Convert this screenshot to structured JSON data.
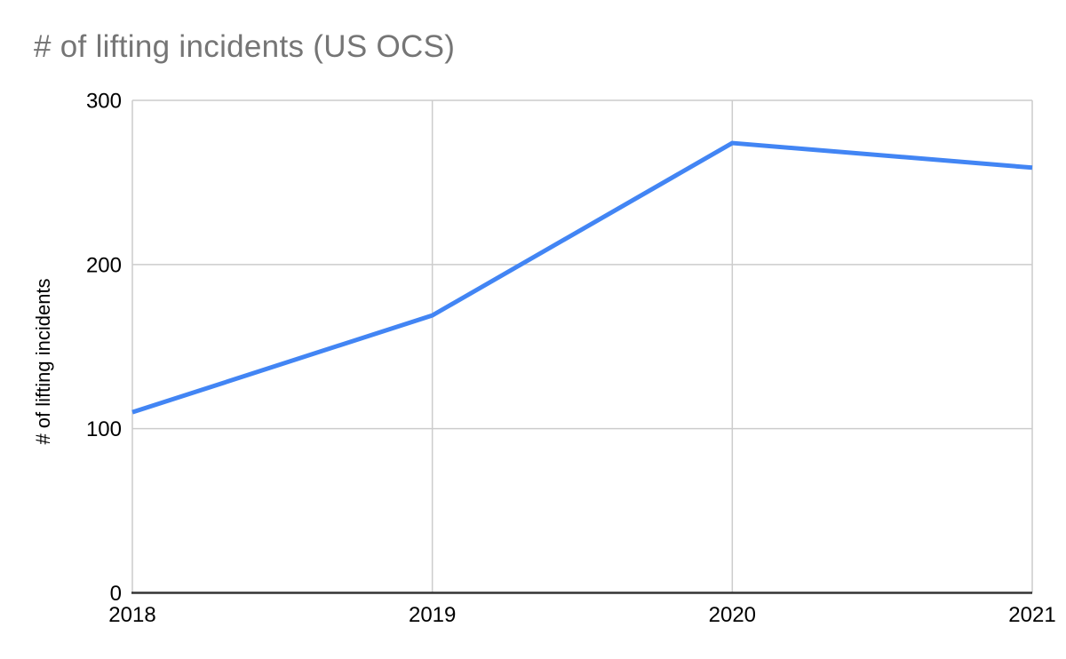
{
  "page": {
    "background": "#ffffff"
  },
  "chart_data": {
    "type": "line",
    "title": "# of lifting incidents (US OCS)",
    "xlabel": "",
    "ylabel": "# of lifting incidents",
    "categories": [
      "2018",
      "2019",
      "2020",
      "2021"
    ],
    "values": [
      110,
      169,
      274,
      259
    ],
    "y_ticks": [
      0,
      100,
      200,
      300
    ],
    "ylim": [
      0,
      300
    ],
    "grid": true,
    "legend_position": "none",
    "markers": false,
    "colors": {
      "series_line": "#4285f4",
      "title_text": "#757575",
      "axis_text": "#000000",
      "gridline": "#cccccc",
      "axis_line": "#333333",
      "background": "#ffffff"
    }
  }
}
